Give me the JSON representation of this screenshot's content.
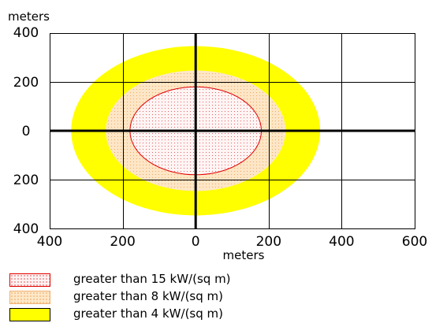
{
  "chart_data": {
    "type": "area",
    "units_label_y": "meters",
    "units_label_x": "meters",
    "xlim": [
      -400,
      600
    ],
    "ylim": [
      -400,
      400
    ],
    "x_ticks": [
      {
        "value": -400,
        "label": "400"
      },
      {
        "value": -200,
        "label": "200"
      },
      {
        "value": 0,
        "label": "0"
      },
      {
        "value": 200,
        "label": "200"
      },
      {
        "value": 400,
        "label": "400"
      },
      {
        "value": 600,
        "label": "600"
      }
    ],
    "y_ticks": [
      {
        "value": 400,
        "label": "400"
      },
      {
        "value": 200,
        "label": "200"
      },
      {
        "value": 0,
        "label": "0"
      },
      {
        "value": -200,
        "label": "200"
      },
      {
        "value": -400,
        "label": "400"
      }
    ],
    "grid": true,
    "zones": [
      {
        "label": "greater than 4 kW/(sq m)",
        "cx": 0,
        "cy": 0,
        "x_min": -340,
        "x_max": 340,
        "y_min": -345,
        "y_max": 345,
        "fill": "#ffff00",
        "stroke": "#ffff00",
        "pattern": "solid"
      },
      {
        "label": "greater than 8 kW/(sq m)",
        "cx": 0,
        "cy": 0,
        "x_min": -245,
        "x_max": 245,
        "y_min": -245,
        "y_max": 245,
        "fill": "#fde8c8",
        "stroke": "#fde8c8",
        "pattern": "dots-orange"
      },
      {
        "label": "greater than 15 kW/(sq m)",
        "cx": 0,
        "cy": 0,
        "x_min": -180,
        "x_max": 180,
        "y_min": -180,
        "y_max": 180,
        "fill": "#fff2f2",
        "stroke": "#e00000",
        "pattern": "dots-red"
      }
    ]
  },
  "legend": [
    {
      "label": "greater than 15 kW/(sq m)",
      "fill": "#fff2f2",
      "border": "#e00000",
      "pattern": "dots-red"
    },
    {
      "label": "greater than 8 kW/(sq m)",
      "fill": "#fde8c8",
      "border": "#f0b070",
      "pattern": "dots-orange"
    },
    {
      "label": "greater than 4 kW/(sq m)",
      "fill": "#ffff00",
      "border": "#000000",
      "pattern": "solid"
    }
  ]
}
